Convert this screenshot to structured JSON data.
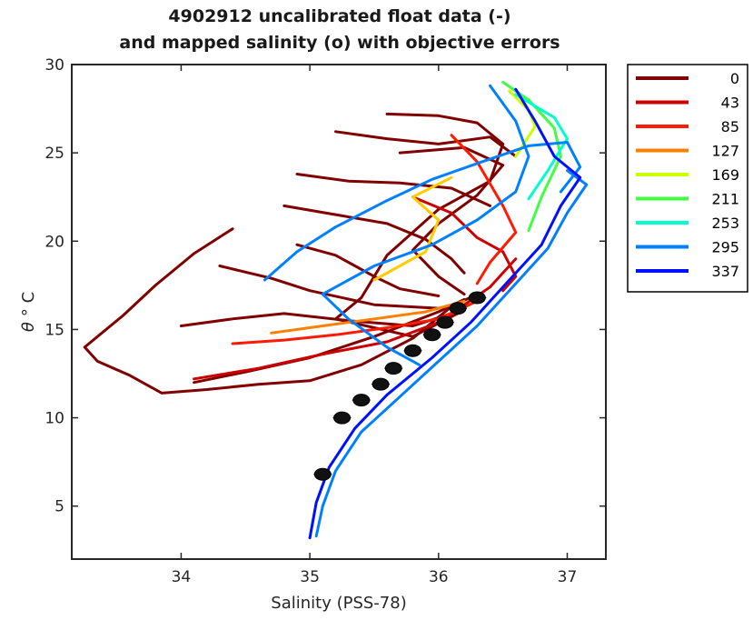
{
  "chart_data": {
    "type": "line",
    "title_line1": "4902912 uncalibrated float data (-)",
    "title_line2": "and mapped salinity (o) with objective errors",
    "xlabel": "Salinity (PSS-78)",
    "ylabel_symbol": "θ",
    "ylabel_unit": "° C",
    "xlim": [
      33.15,
      37.3
    ],
    "ylim": [
      2,
      30
    ],
    "xticks": [
      "34",
      "35",
      "36",
      "37"
    ],
    "xtick_values": [
      34,
      35,
      36,
      37
    ],
    "yticks": [
      "5",
      "10",
      "15",
      "20",
      "25",
      "30"
    ],
    "ytick_values": [
      5,
      10,
      15,
      20,
      25,
      30
    ],
    "legend_position": "outside-right",
    "legend": [
      {
        "label": "0",
        "color": "#800000"
      },
      {
        "label": "43",
        "color": "#cc0000"
      },
      {
        "label": "85",
        "color": "#ff1a00"
      },
      {
        "label": "127",
        "color": "#ff8000"
      },
      {
        "label": "169",
        "color": "#ccff00"
      },
      {
        "label": "211",
        "color": "#40ff40"
      },
      {
        "label": "253",
        "color": "#00ffcc"
      },
      {
        "label": "295",
        "color": "#0080ff"
      },
      {
        "label": "337",
        "color": "#0010ff"
      }
    ],
    "series": [
      {
        "color": "#800000",
        "points": [
          [
            34.4,
            20.7
          ],
          [
            34.1,
            19.3
          ],
          [
            33.8,
            17.5
          ],
          [
            33.55,
            15.8
          ],
          [
            33.25,
            14.0
          ],
          [
            33.35,
            13.2
          ],
          [
            33.6,
            12.4
          ],
          [
            33.85,
            11.4
          ],
          [
            34.2,
            11.6
          ],
          [
            34.6,
            11.9
          ],
          [
            35.0,
            12.1
          ],
          [
            35.4,
            13.0
          ],
          [
            35.8,
            14.5
          ],
          [
            36.1,
            16.3
          ],
          [
            36.3,
            17.0
          ]
        ]
      },
      {
        "color": "#800000",
        "points": [
          [
            35.6,
            27.2
          ],
          [
            36.0,
            27.1
          ],
          [
            36.3,
            26.7
          ],
          [
            36.5,
            25.5
          ],
          [
            36.4,
            23.4
          ],
          [
            36.0,
            21.8
          ],
          [
            35.6,
            19.2
          ],
          [
            35.4,
            16.8
          ],
          [
            35.2,
            15.6
          ],
          [
            35.8,
            14.6
          ],
          [
            36.2,
            16.1
          ]
        ]
      },
      {
        "color": "#800000",
        "points": [
          [
            34.1,
            12.0
          ],
          [
            34.5,
            12.6
          ],
          [
            35.0,
            13.4
          ],
          [
            35.5,
            14.6
          ],
          [
            36.0,
            16.0
          ],
          [
            36.2,
            16.7
          ]
        ]
      },
      {
        "color": "#800000",
        "points": [
          [
            35.7,
            25.0
          ],
          [
            36.2,
            25.3
          ],
          [
            36.5,
            24.3
          ],
          [
            36.3,
            22.6
          ],
          [
            36.0,
            21.0
          ],
          [
            35.8,
            19.5
          ],
          [
            36.0,
            18.0
          ],
          [
            36.2,
            17.0
          ]
        ]
      },
      {
        "color": "#800000",
        "points": [
          [
            34.8,
            22.0
          ],
          [
            35.2,
            21.5
          ],
          [
            35.6,
            21.0
          ],
          [
            35.9,
            20.1
          ],
          [
            36.1,
            19.0
          ],
          [
            36.2,
            18.2
          ]
        ]
      },
      {
        "color": "#800000",
        "points": [
          [
            34.3,
            18.6
          ],
          [
            34.7,
            17.9
          ],
          [
            35.0,
            17.2
          ],
          [
            35.5,
            16.4
          ],
          [
            36.0,
            16.2
          ]
        ]
      },
      {
        "color": "#800000",
        "points": [
          [
            35.2,
            26.2
          ],
          [
            35.6,
            25.8
          ],
          [
            36.0,
            25.5
          ],
          [
            36.4,
            25.9
          ],
          [
            36.6,
            24.8
          ]
        ]
      },
      {
        "color": "#800000",
        "points": [
          [
            34.9,
            23.8
          ],
          [
            35.3,
            23.4
          ],
          [
            35.7,
            23.3
          ],
          [
            36.1,
            23.0
          ],
          [
            36.4,
            22.0
          ]
        ]
      },
      {
        "color": "#800000",
        "points": [
          [
            34.9,
            19.8
          ],
          [
            35.2,
            19.2
          ],
          [
            35.5,
            18.0
          ],
          [
            35.7,
            17.3
          ],
          [
            36.0,
            16.9
          ]
        ]
      },
      {
        "color": "#800000",
        "points": [
          [
            34.0,
            15.2
          ],
          [
            34.4,
            15.6
          ],
          [
            34.8,
            15.9
          ],
          [
            35.3,
            15.5
          ],
          [
            35.8,
            15.2
          ],
          [
            36.1,
            15.9
          ]
        ]
      },
      {
        "color": "#cc0000",
        "points": [
          [
            34.1,
            12.2
          ],
          [
            34.6,
            12.8
          ],
          [
            35.1,
            13.6
          ],
          [
            35.6,
            14.3
          ],
          [
            36.0,
            15.4
          ],
          [
            36.4,
            17.4
          ],
          [
            36.6,
            19.0
          ]
        ]
      },
      {
        "color": "#cc0000",
        "points": [
          [
            35.8,
            22.5
          ],
          [
            36.1,
            21.6
          ],
          [
            36.3,
            20.2
          ],
          [
            36.5,
            19.4
          ],
          [
            36.6,
            18.0
          ],
          [
            36.5,
            17.2
          ]
        ]
      },
      {
        "color": "#ff1a00",
        "points": [
          [
            34.4,
            14.2
          ],
          [
            34.8,
            14.4
          ],
          [
            35.2,
            14.7
          ],
          [
            35.6,
            15.1
          ],
          [
            36.0,
            15.6
          ],
          [
            36.3,
            16.6
          ]
        ]
      },
      {
        "color": "#ff1a00",
        "points": [
          [
            36.1,
            26.0
          ],
          [
            36.3,
            24.5
          ],
          [
            36.5,
            22.0
          ],
          [
            36.6,
            20.5
          ],
          [
            36.4,
            18.8
          ],
          [
            36.3,
            17.6
          ]
        ]
      },
      {
        "color": "#ff8000",
        "points": [
          [
            34.7,
            14.8
          ],
          [
            35.1,
            15.2
          ],
          [
            35.5,
            15.6
          ],
          [
            35.9,
            16.0
          ],
          [
            36.2,
            16.6
          ]
        ]
      },
      {
        "color": "#ffcc00",
        "points": [
          [
            35.5,
            17.8
          ],
          [
            35.9,
            19.4
          ],
          [
            36.0,
            21.2
          ],
          [
            35.8,
            22.5
          ],
          [
            36.1,
            23.6
          ]
        ]
      },
      {
        "color": "#ccff00",
        "points": [
          [
            36.55,
            28.5
          ],
          [
            36.7,
            27.4
          ],
          [
            36.75,
            26.5
          ],
          [
            36.6,
            24.8
          ]
        ]
      },
      {
        "color": "#40ff40",
        "points": [
          [
            36.5,
            29.0
          ],
          [
            36.7,
            28.0
          ],
          [
            36.9,
            26.4
          ],
          [
            36.95,
            24.8
          ],
          [
            36.8,
            22.5
          ],
          [
            36.7,
            20.6
          ]
        ]
      },
      {
        "color": "#00ffcc",
        "points": [
          [
            36.6,
            28.3
          ],
          [
            36.9,
            27.0
          ],
          [
            37.0,
            25.8
          ],
          [
            36.85,
            24.0
          ],
          [
            36.7,
            22.4
          ]
        ]
      },
      {
        "color": "#0080ff",
        "points": [
          [
            35.85,
            13.0
          ],
          [
            35.6,
            14.0
          ],
          [
            35.3,
            15.6
          ],
          [
            35.1,
            17.0
          ],
          [
            35.5,
            18.6
          ],
          [
            35.95,
            19.8
          ],
          [
            36.3,
            21.2
          ],
          [
            36.6,
            22.8
          ],
          [
            36.7,
            24.8
          ],
          [
            36.6,
            26.8
          ],
          [
            36.4,
            28.8
          ]
        ]
      },
      {
        "color": "#0080ff",
        "points": [
          [
            34.65,
            17.8
          ],
          [
            34.9,
            19.4
          ],
          [
            35.2,
            20.8
          ],
          [
            35.6,
            22.3
          ],
          [
            35.95,
            23.5
          ],
          [
            36.3,
            24.4
          ],
          [
            36.7,
            25.4
          ],
          [
            37.0,
            25.6
          ],
          [
            37.1,
            24.2
          ],
          [
            36.95,
            22.8
          ]
        ]
      },
      {
        "color": "#0080ff",
        "points": [
          [
            35.05,
            3.3
          ],
          [
            35.1,
            5.0
          ],
          [
            35.2,
            7.0
          ],
          [
            35.4,
            9.2
          ],
          [
            35.7,
            11.2
          ],
          [
            36.0,
            13.2
          ],
          [
            36.3,
            15.2
          ],
          [
            36.55,
            17.2
          ],
          [
            36.85,
            19.6
          ],
          [
            37.0,
            21.6
          ],
          [
            37.15,
            23.2
          ],
          [
            37.0,
            24.0
          ]
        ]
      },
      {
        "color": "#0010ff",
        "points": [
          [
            35.0,
            3.2
          ],
          [
            35.05,
            5.2
          ],
          [
            35.15,
            7.2
          ],
          [
            35.35,
            9.4
          ],
          [
            35.6,
            11.3
          ],
          [
            35.95,
            13.4
          ],
          [
            36.25,
            15.4
          ],
          [
            36.5,
            17.4
          ],
          [
            36.8,
            19.8
          ],
          [
            36.95,
            22.0
          ],
          [
            37.1,
            23.6
          ],
          [
            36.9,
            24.8
          ],
          [
            36.75,
            26.8
          ],
          [
            36.6,
            28.6
          ]
        ]
      }
    ],
    "mapped_points": [
      [
        35.1,
        6.8
      ],
      [
        35.25,
        10.0
      ],
      [
        35.4,
        11.0
      ],
      [
        35.55,
        11.9
      ],
      [
        35.65,
        12.8
      ],
      [
        35.8,
        13.8
      ],
      [
        35.95,
        14.7
      ],
      [
        36.05,
        15.4
      ],
      [
        36.15,
        16.2
      ],
      [
        36.3,
        16.8
      ]
    ]
  }
}
